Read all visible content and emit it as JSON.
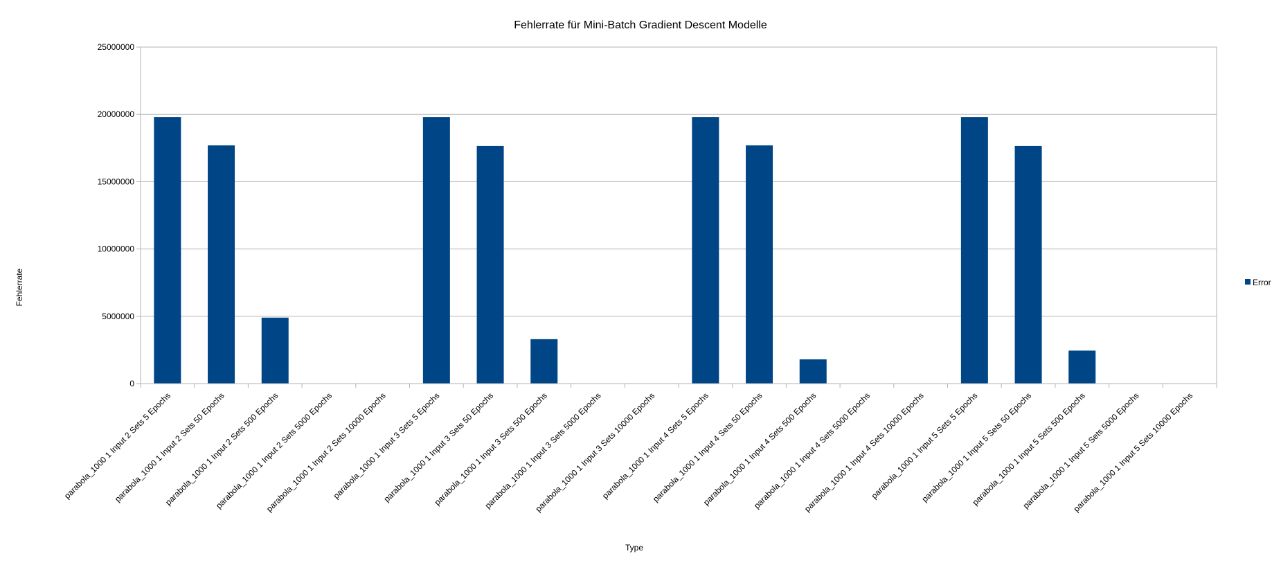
{
  "chart_data": {
    "type": "bar",
    "title": "Fehlerrate für Mini-Batch Gradient Descent Modelle",
    "xlabel": "Type",
    "ylabel": "Fehlerrate",
    "ylim": [
      0,
      25000000
    ],
    "yticks": [
      "0",
      "5000000",
      "10000000",
      "15000000",
      "20000000",
      "25000000"
    ],
    "grid": true,
    "legend": "right",
    "color": "#004586",
    "categories": [
      "parabola_1000 1 Input 2 Sets 5 Epochs",
      "parabola_1000 1 Input 2 Sets 50 Epochs",
      "parabola_1000 1 Input 2 Sets 500 Epochs",
      "parabola_1000 1 Input 2 Sets 5000 Epochs",
      "parabola_1000 1 Input 2 Sets 10000 Epochs",
      "parabola_1000 1 Input 3 Sets 5 Epochs",
      "parabola_1000 1 Input 3 Sets 50 Epochs",
      "parabola_1000 1 Input 3 Sets 500 Epochs",
      "parabola_1000 1 Input 3 Sets 5000 Epochs",
      "parabola_1000 1 Input 3 Sets 10000 Epochs",
      "parabola_1000 1 Input 4 Sets 5 Epochs",
      "parabola_1000 1 Input 4 Sets 50 Epochs",
      "parabola_1000 1 Input 4 Sets 500 Epochs",
      "parabola_1000 1 Input 4 Sets 5000 Epochs",
      "parabola_1000 1 Input 4 Sets 10000 Epochs",
      "parabola_1000 1 Input 5 Sets 5 Epochs",
      "parabola_1000 1 Input 5 Sets 50 Epochs",
      "parabola_1000 1 Input 5 Sets 500 Epochs",
      "parabola_1000 1 Input 5 Sets 5000 Epochs",
      "parabola_1000 1 Input 5 Sets 10000 Epochs"
    ],
    "series": [
      {
        "name": "Error",
        "values": [
          19800000,
          17700000,
          4900000,
          0,
          0,
          19800000,
          17650000,
          3300000,
          0,
          0,
          19800000,
          17700000,
          1800000,
          0,
          0,
          19800000,
          17650000,
          2450000,
          0,
          0
        ]
      }
    ]
  }
}
